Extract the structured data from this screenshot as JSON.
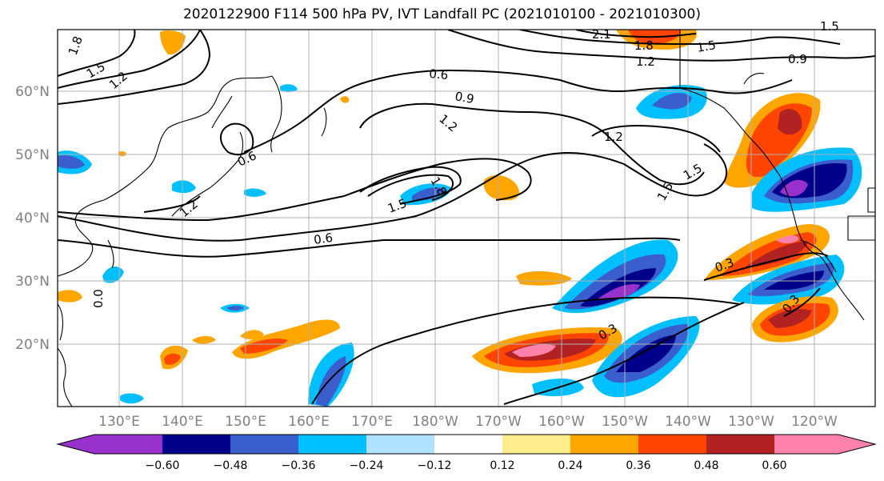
{
  "title": "2020122900 F114 500 hPa PV, IVT Landfall PC (2021010100 - 2021010300)",
  "map": {
    "lat_ticks": [
      "60°N",
      "50°N",
      "40°N",
      "30°N",
      "20°N"
    ],
    "lon_ticks": [
      "130°E",
      "140°E",
      "150°E",
      "160°E",
      "170°E",
      "180°W",
      "170°W",
      "160°W",
      "150°W",
      "140°W",
      "130°W",
      "120°W"
    ],
    "contour_labels": [
      "1.8",
      "1.5",
      "1.2",
      "0.6",
      "0.9",
      "1.2",
      "0.6",
      "1.2",
      "1.5",
      "1.5",
      "1.8",
      "1.5",
      "0.6",
      "0.3",
      "0.3",
      "0.3",
      "0.0",
      "1.2",
      "1.8",
      "1.5",
      "1.2",
      "0.9",
      "2.1",
      "1.5"
    ]
  },
  "colorbar": {
    "colors": [
      "#9932cc",
      "#00008b",
      "#3a5fcd",
      "#00bfff",
      "#b0e2ff",
      "#ffffff",
      "#ffec8b",
      "#ffa500",
      "#ff4500",
      "#b22222",
      "#ff82ab"
    ],
    "tick_labels": [
      "−0.60",
      "−0.48",
      "−0.36",
      "−0.24",
      "−0.12",
      "0.12",
      "0.24",
      "0.36",
      "0.48",
      "0.60"
    ]
  }
}
